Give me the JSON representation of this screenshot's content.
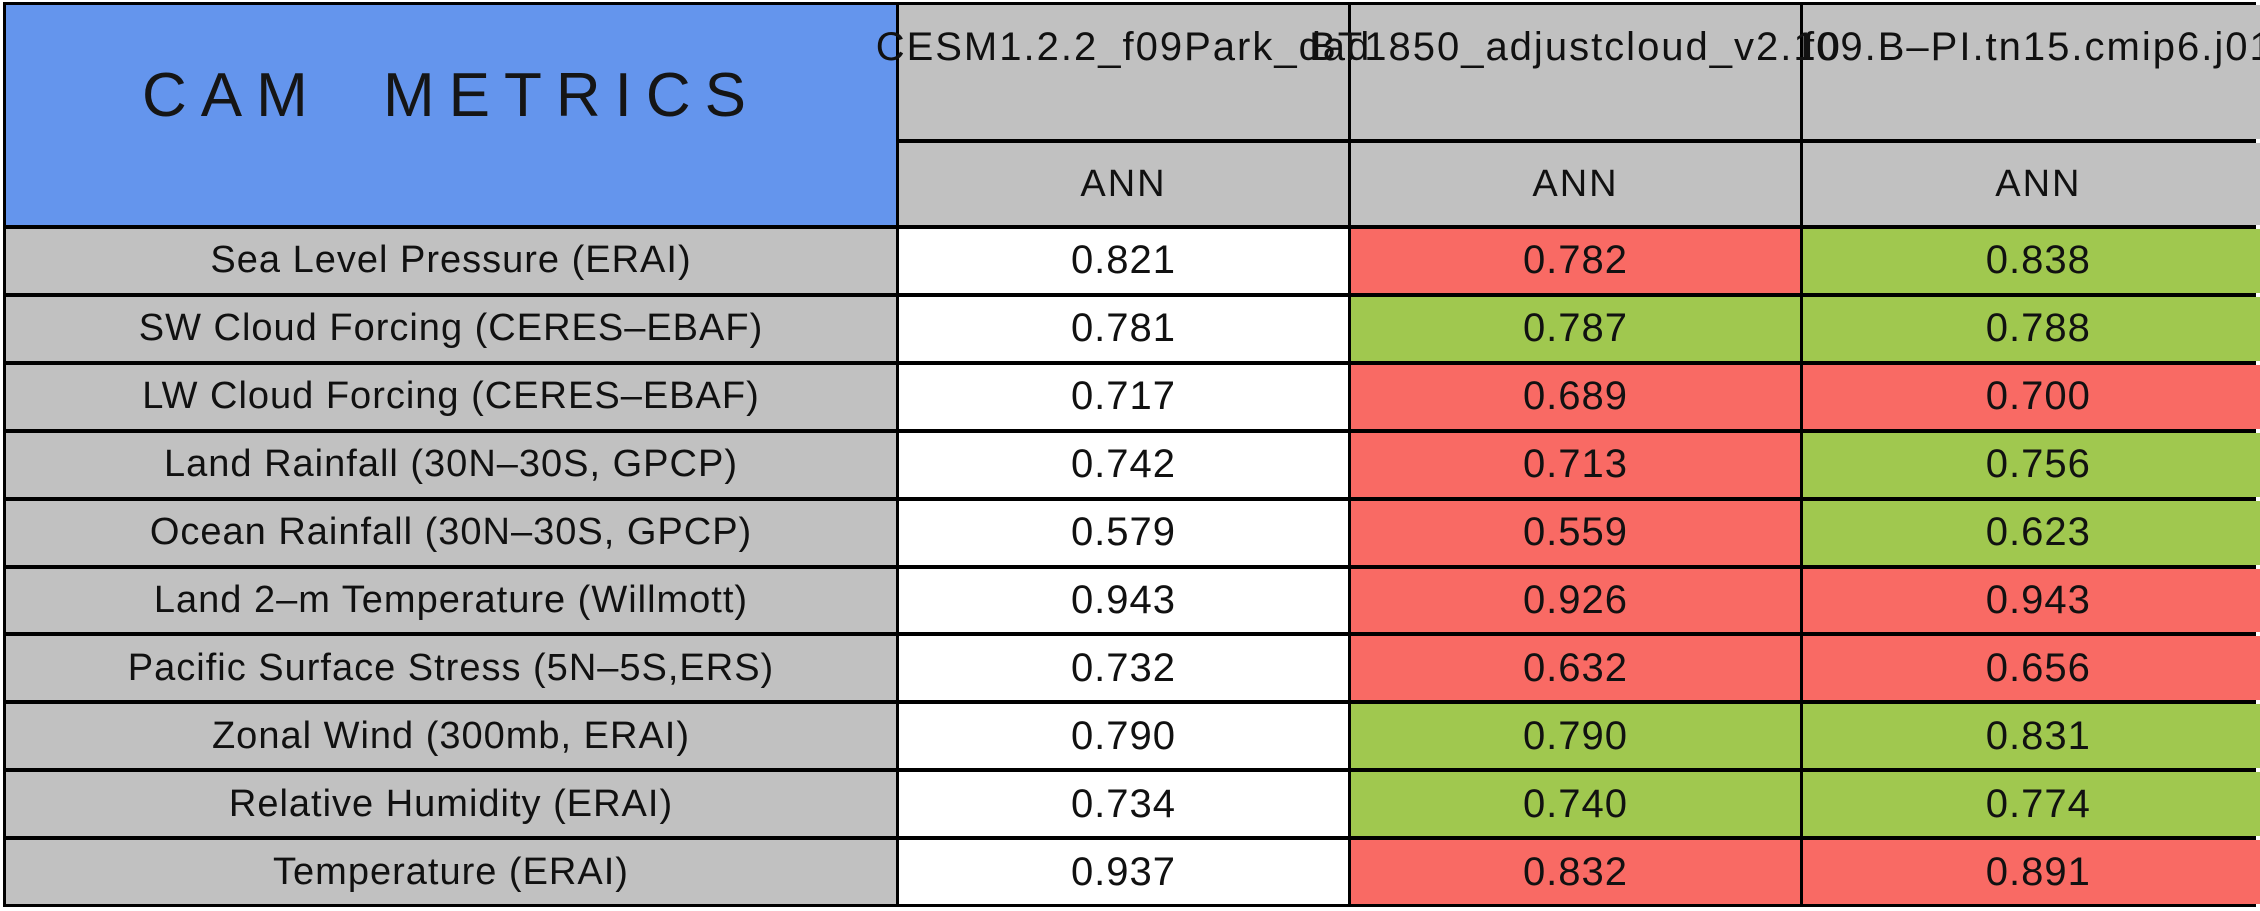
{
  "title": "CAM METRICS",
  "colors": {
    "title_blue": "#6495ED",
    "label_gray": "#C1C1C1",
    "worse_red": "#F96A64",
    "better_green": "#A0C84F",
    "control_white": "#FFFFFF"
  },
  "chart_data": {
    "type": "table",
    "title": "CAM METRICS",
    "columns": [
      {
        "model": "CESM1.2.2_f09Park_dad",
        "season": "ANN"
      },
      {
        "model": "BT1850_adjustcloud_v2.10",
        "season": "ANN"
      },
      {
        "model": "f09.B–PI.tn15.cmip6.j01",
        "season": "ANN"
      }
    ],
    "rows": [
      {
        "metric": "Sea Level Pressure (ERAI)",
        "values": [
          "0.821",
          "0.782",
          "0.838"
        ],
        "cell_colors": [
          "white",
          "red",
          "green"
        ]
      },
      {
        "metric": "SW Cloud Forcing (CERES–EBAF)",
        "values": [
          "0.781",
          "0.787",
          "0.788"
        ],
        "cell_colors": [
          "white",
          "green",
          "green"
        ]
      },
      {
        "metric": "LW Cloud Forcing (CERES–EBAF)",
        "values": [
          "0.717",
          "0.689",
          "0.700"
        ],
        "cell_colors": [
          "white",
          "red",
          "red"
        ]
      },
      {
        "metric": "Land Rainfall (30N–30S, GPCP)",
        "values": [
          "0.742",
          "0.713",
          "0.756"
        ],
        "cell_colors": [
          "white",
          "red",
          "green"
        ]
      },
      {
        "metric": "Ocean Rainfall (30N–30S, GPCP)",
        "values": [
          "0.579",
          "0.559",
          "0.623"
        ],
        "cell_colors": [
          "white",
          "red",
          "green"
        ]
      },
      {
        "metric": "Land 2–m Temperature (Willmott)",
        "values": [
          "0.943",
          "0.926",
          "0.943"
        ],
        "cell_colors": [
          "white",
          "red",
          "red"
        ]
      },
      {
        "metric": "Pacific Surface Stress (5N–5S,ERS)",
        "values": [
          "0.732",
          "0.632",
          "0.656"
        ],
        "cell_colors": [
          "white",
          "red",
          "red"
        ]
      },
      {
        "metric": "Zonal Wind (300mb, ERAI)",
        "values": [
          "0.790",
          "0.790",
          "0.831"
        ],
        "cell_colors": [
          "white",
          "green",
          "green"
        ]
      },
      {
        "metric": "Relative Humidity (ERAI)",
        "values": [
          "0.734",
          "0.740",
          "0.774"
        ],
        "cell_colors": [
          "white",
          "green",
          "green"
        ]
      },
      {
        "metric": "Temperature (ERAI)",
        "values": [
          "0.937",
          "0.832",
          "0.891"
        ],
        "cell_colors": [
          "white",
          "red",
          "red"
        ]
      }
    ]
  }
}
